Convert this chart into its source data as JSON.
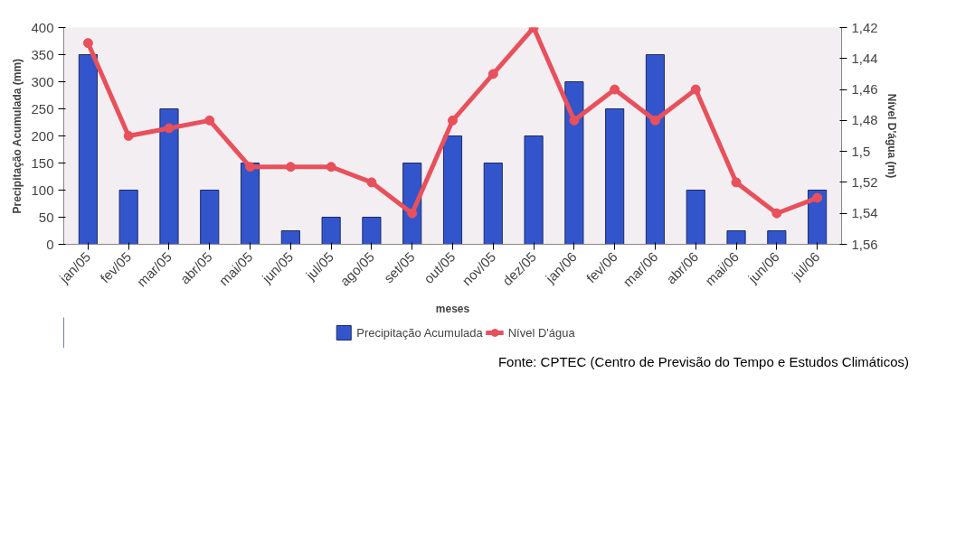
{
  "chart_data": {
    "type": "bar",
    "categories": [
      "jan/05",
      "fev/05",
      "mar/05",
      "abr/05",
      "mai/05",
      "jun/05",
      "jul/05",
      "ago/05",
      "set/05",
      "out/05",
      "nov/05",
      "dez/05",
      "jan/06",
      "fev/06",
      "mar/06",
      "abr/06",
      "mai/06",
      "jun/06",
      "jul/06"
    ],
    "series": [
      {
        "name": "Precipitação Acumulada",
        "color": "#3355cc",
        "values": [
          350,
          100,
          250,
          100,
          150,
          25,
          50,
          50,
          150,
          200,
          150,
          200,
          300,
          250,
          350,
          100,
          25,
          25,
          100
        ]
      },
      {
        "name": "Nível D'água",
        "type": "line",
        "axis": "y2",
        "color": "#e8505b",
        "values": [
          1.43,
          1.49,
          1.485,
          1.48,
          1.51,
          1.51,
          1.51,
          1.52,
          1.54,
          1.48,
          1.45,
          1.42,
          1.48,
          1.46,
          1.48,
          1.46,
          1.52,
          1.54,
          1.53
        ]
      }
    ],
    "xlabel": "meses",
    "ylabel": "Precipitação Acumulada (mm)",
    "y2label": "Nível D'água (m)",
    "ylim": [
      0,
      400
    ],
    "yticks": [
      0,
      50,
      100,
      150,
      200,
      250,
      300,
      350,
      400
    ],
    "y2lim": [
      1.56,
      1.42
    ],
    "y2ticks": [
      {
        "value": 1.42,
        "label": "1,42"
      },
      {
        "value": 1.44,
        "label": "1,44"
      },
      {
        "value": 1.46,
        "label": "1,46"
      },
      {
        "value": 1.48,
        "label": "1,48"
      },
      {
        "value": 1.5,
        "label": "1,5"
      },
      {
        "value": 1.52,
        "label": "1,52"
      },
      {
        "value": 1.54,
        "label": "1,54"
      },
      {
        "value": 1.56,
        "label": "1,56"
      }
    ],
    "marker": "circle",
    "grid": false,
    "legend": "bottom",
    "annotations": [
      "Fonte: CPTEC (Centro de Previsão do Tempo e Estudos Climáticos)"
    ]
  }
}
